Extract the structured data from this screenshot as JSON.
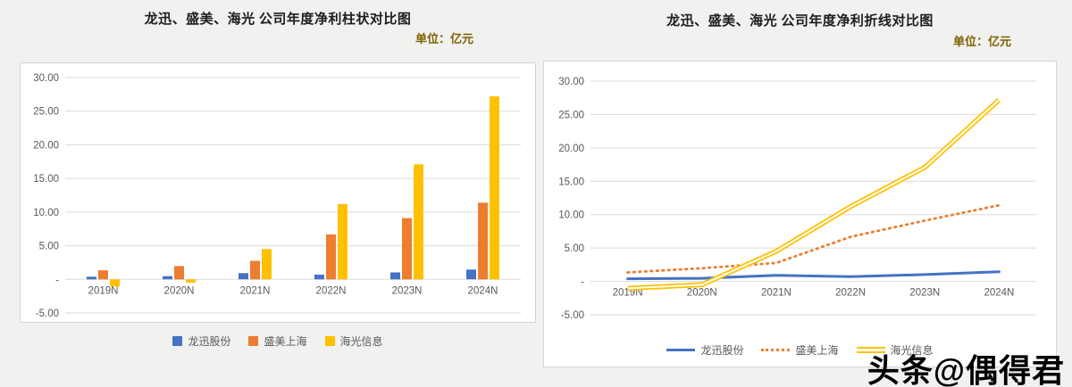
{
  "page_background": "#f1f1ef",
  "watermark": {
    "text": "头条@偶得君"
  },
  "chart_data": [
    {
      "type": "bar",
      "title": "龙迅、盛美、海光 公司年度净利柱状对比图",
      "unit_label": "单位：亿元",
      "categories": [
        "2019N",
        "2020N",
        "2021N",
        "2022N",
        "2023N",
        "2024N"
      ],
      "series": [
        {
          "name": "龙迅股份",
          "color": "#4472C4",
          "values": [
            0.4,
            0.47,
            0.92,
            0.7,
            1.03,
            1.45
          ]
        },
        {
          "name": "盛美上海",
          "color": "#ED7D31",
          "values": [
            1.35,
            1.97,
            2.76,
            6.68,
            9.11,
            11.4
          ]
        },
        {
          "name": "海光信息",
          "color": "#FFC000",
          "values": [
            -1.05,
            -0.5,
            4.5,
            11.2,
            17.1,
            27.2
          ]
        }
      ],
      "ylim": [
        -5,
        30
      ],
      "yticks": [
        30,
        25,
        20,
        15,
        10,
        5,
        0,
        -5
      ],
      "ytick_labels": [
        "30.00",
        "25.00",
        "20.00",
        "15.00",
        "10.00",
        "5.00",
        "-",
        "-5.00"
      ],
      "grid": true,
      "legend_position": "bottom"
    },
    {
      "type": "line",
      "title": "龙迅、盛美、海光 公司年度净利折线对比图",
      "unit_label": "单位：亿元",
      "categories": [
        "2019N",
        "2020N",
        "2021N",
        "2022N",
        "2023N",
        "2024N"
      ],
      "series": [
        {
          "name": "龙迅股份",
          "color": "#4472C4",
          "line_style": "solid",
          "values": [
            0.4,
            0.47,
            0.92,
            0.7,
            1.03,
            1.45
          ]
        },
        {
          "name": "盛美上海",
          "color": "#ED7D31",
          "line_style": "dotted",
          "values": [
            1.35,
            1.97,
            2.76,
            6.68,
            9.11,
            11.4
          ]
        },
        {
          "name": "海光信息",
          "color": "#FFC000",
          "line_style": "double",
          "values": [
            -1.05,
            -0.5,
            4.5,
            11.2,
            17.1,
            27.2
          ]
        }
      ],
      "ylim": [
        -5,
        30
      ],
      "yticks": [
        30,
        25,
        20,
        15,
        10,
        5,
        0,
        -5
      ],
      "ytick_labels": [
        "30.00",
        "25.00",
        "20.00",
        "15.00",
        "10.00",
        "5.00",
        "-",
        "-5.00"
      ],
      "grid": true,
      "legend_position": "bottom"
    }
  ]
}
